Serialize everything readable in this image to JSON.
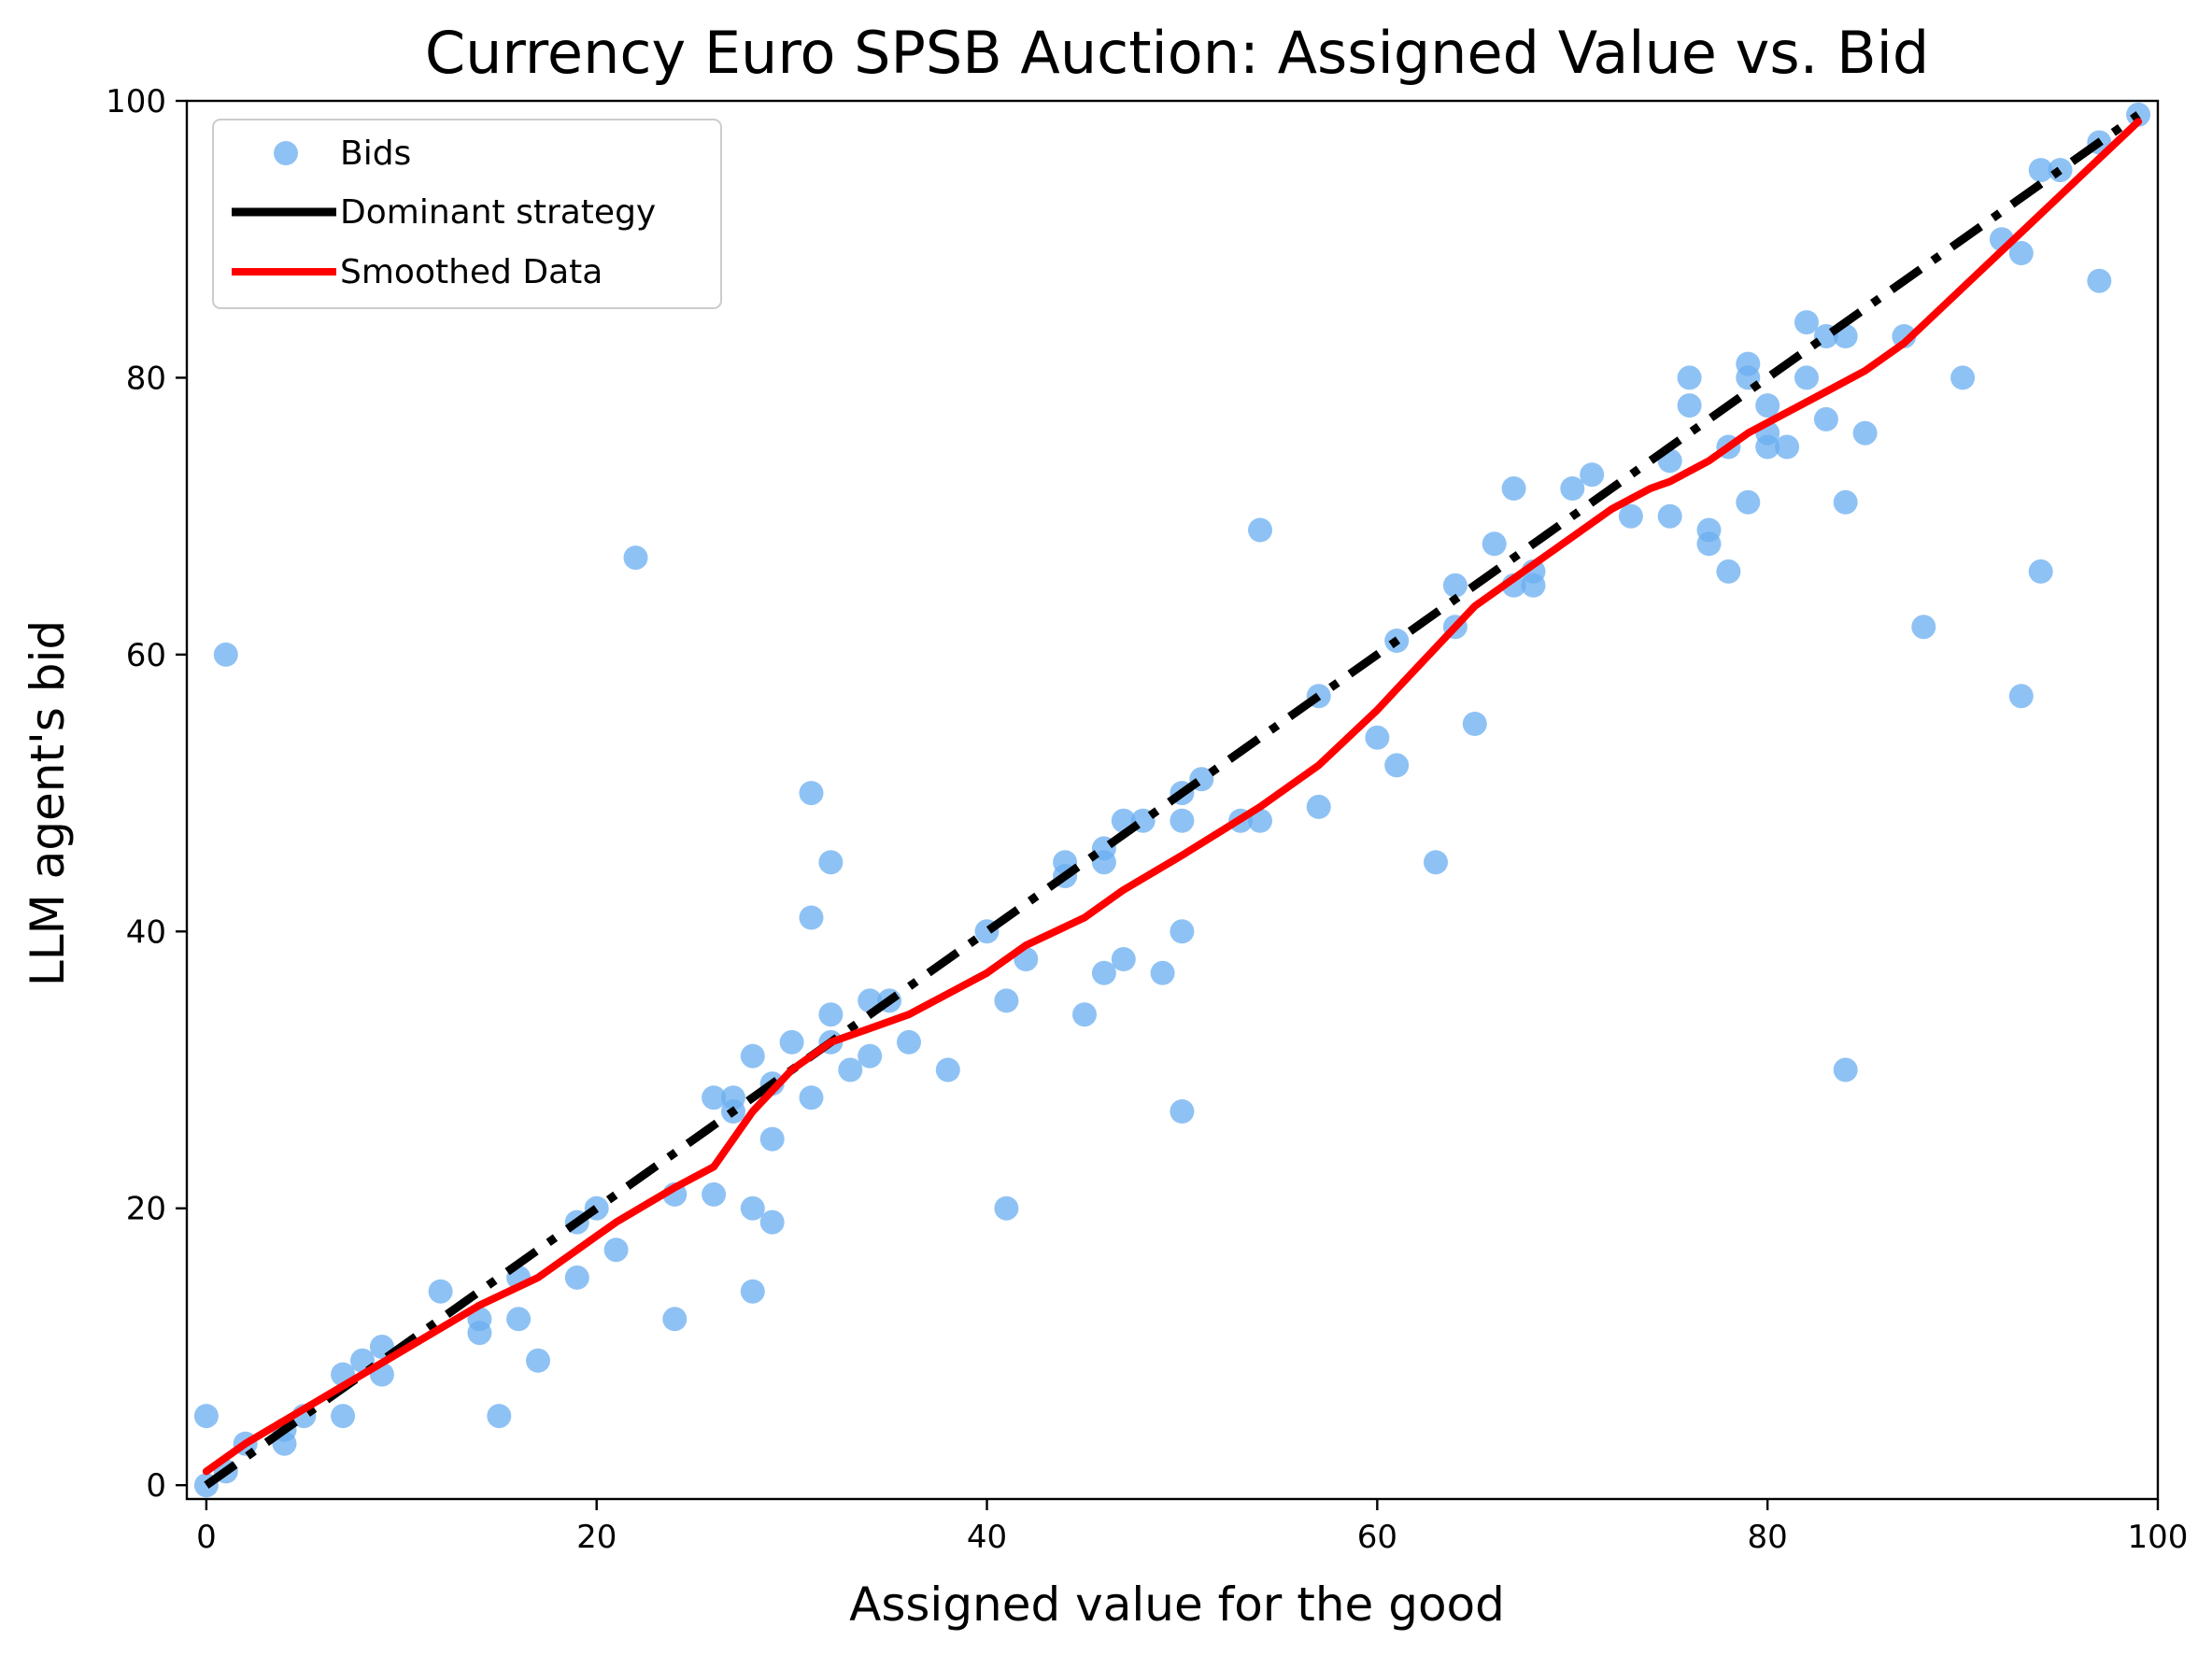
{
  "chart_data": {
    "type": "scatter",
    "title": "Currency Euro SPSB Auction: Assigned Value vs. Bid",
    "xlabel": "Assigned value for the good",
    "ylabel": "LLM agent's bid",
    "xlim": [
      -1,
      100
    ],
    "ylim": [
      -1,
      100
    ],
    "xticks": [
      0,
      20,
      40,
      60,
      80,
      100
    ],
    "yticks": [
      0,
      20,
      40,
      60,
      80,
      100
    ],
    "grid": false,
    "legend_position": "top-left",
    "colors": {
      "bids": "#6aaef0",
      "dominant": "#000000",
      "smoothed": "#ff0000"
    },
    "series": [
      {
        "name": "Bids",
        "kind": "scatter",
        "points": [
          [
            0,
            0
          ],
          [
            0,
            5
          ],
          [
            1,
            1
          ],
          [
            1,
            60
          ],
          [
            2,
            3
          ],
          [
            4,
            3
          ],
          [
            4,
            4
          ],
          [
            5,
            5
          ],
          [
            7,
            5
          ],
          [
            7,
            8
          ],
          [
            8,
            9
          ],
          [
            9,
            10
          ],
          [
            9,
            8
          ],
          [
            12,
            14
          ],
          [
            14,
            11
          ],
          [
            14,
            12
          ],
          [
            15,
            5
          ],
          [
            16,
            15
          ],
          [
            16,
            12
          ],
          [
            17,
            9
          ],
          [
            19,
            19
          ],
          [
            19,
            15
          ],
          [
            20,
            20
          ],
          [
            21,
            17
          ],
          [
            22,
            67
          ],
          [
            24,
            21
          ],
          [
            24,
            12
          ],
          [
            26,
            28
          ],
          [
            26,
            21
          ],
          [
            27,
            28
          ],
          [
            27,
            27
          ],
          [
            28,
            31
          ],
          [
            28,
            20
          ],
          [
            28,
            14
          ],
          [
            29,
            29
          ],
          [
            29,
            25
          ],
          [
            29,
            19
          ],
          [
            30,
            32
          ],
          [
            31,
            50
          ],
          [
            31,
            41
          ],
          [
            31,
            28
          ],
          [
            32,
            45
          ],
          [
            32,
            34
          ],
          [
            32,
            32
          ],
          [
            33,
            30
          ],
          [
            34,
            35
          ],
          [
            34,
            31
          ],
          [
            35,
            35
          ],
          [
            36,
            32
          ],
          [
            38,
            30
          ],
          [
            40,
            40
          ],
          [
            41,
            35
          ],
          [
            41,
            20
          ],
          [
            42,
            38
          ],
          [
            44,
            45
          ],
          [
            44,
            44
          ],
          [
            45,
            34
          ],
          [
            46,
            46
          ],
          [
            46,
            45
          ],
          [
            46,
            37
          ],
          [
            47,
            48
          ],
          [
            47,
            38
          ],
          [
            48,
            48
          ],
          [
            49,
            37
          ],
          [
            50,
            50
          ],
          [
            50,
            48
          ],
          [
            50,
            40
          ],
          [
            50,
            27
          ],
          [
            51,
            51
          ],
          [
            53,
            48
          ],
          [
            54,
            69
          ],
          [
            54,
            48
          ],
          [
            57,
            57
          ],
          [
            57,
            49
          ],
          [
            60,
            54
          ],
          [
            61,
            61
          ],
          [
            61,
            52
          ],
          [
            63,
            45
          ],
          [
            64,
            65
          ],
          [
            64,
            62
          ],
          [
            65,
            55
          ],
          [
            66,
            68
          ],
          [
            67,
            72
          ],
          [
            67,
            65
          ],
          [
            68,
            66
          ],
          [
            68,
            65
          ],
          [
            70,
            72
          ],
          [
            71,
            73
          ],
          [
            73,
            70
          ],
          [
            75,
            74
          ],
          [
            75,
            70
          ],
          [
            76,
            80
          ],
          [
            76,
            78
          ],
          [
            77,
            69
          ],
          [
            77,
            68
          ],
          [
            78,
            75
          ],
          [
            78,
            66
          ],
          [
            79,
            81
          ],
          [
            79,
            80
          ],
          [
            79,
            71
          ],
          [
            80,
            78
          ],
          [
            80,
            76
          ],
          [
            80,
            75
          ],
          [
            81,
            75
          ],
          [
            82,
            84
          ],
          [
            82,
            80
          ],
          [
            83,
            83
          ],
          [
            83,
            77
          ],
          [
            84,
            83
          ],
          [
            84,
            71
          ],
          [
            84,
            30
          ],
          [
            85,
            76
          ],
          [
            87,
            83
          ],
          [
            88,
            62
          ],
          [
            90,
            80
          ],
          [
            92,
            90
          ],
          [
            93,
            89
          ],
          [
            93,
            57
          ],
          [
            94,
            95
          ],
          [
            94,
            66
          ],
          [
            95,
            95
          ],
          [
            97,
            97
          ],
          [
            97,
            87
          ],
          [
            99,
            99
          ]
        ]
      },
      {
        "name": "Dominant strategy",
        "kind": "line",
        "style": "dashdot",
        "x": [
          0,
          99
        ],
        "y": [
          0,
          99
        ]
      },
      {
        "name": "Smoothed Data",
        "kind": "line",
        "style": "solid",
        "x": [
          0,
          2,
          5,
          8,
          11,
          14,
          17,
          19,
          21,
          24,
          26,
          28,
          30,
          32,
          34,
          36,
          38,
          40,
          42,
          45,
          47,
          50,
          54,
          57,
          60,
          61,
          63,
          65,
          68,
          70,
          72,
          74,
          75,
          77,
          79,
          81,
          83,
          85,
          87,
          90,
          93,
          96,
          99
        ],
        "y": [
          1,
          3,
          5.5,
          8,
          10.5,
          13,
          15,
          17,
          19,
          21.5,
          23,
          27,
          30,
          32,
          33,
          34,
          35.5,
          37,
          39,
          41,
          43,
          45.5,
          49,
          52,
          56,
          57.5,
          60.5,
          63.5,
          66.5,
          68.5,
          70.5,
          72,
          72.5,
          74,
          76,
          77.5,
          79,
          80.5,
          82.5,
          86.5,
          90.5,
          94.5,
          98.5
        ]
      }
    ]
  }
}
